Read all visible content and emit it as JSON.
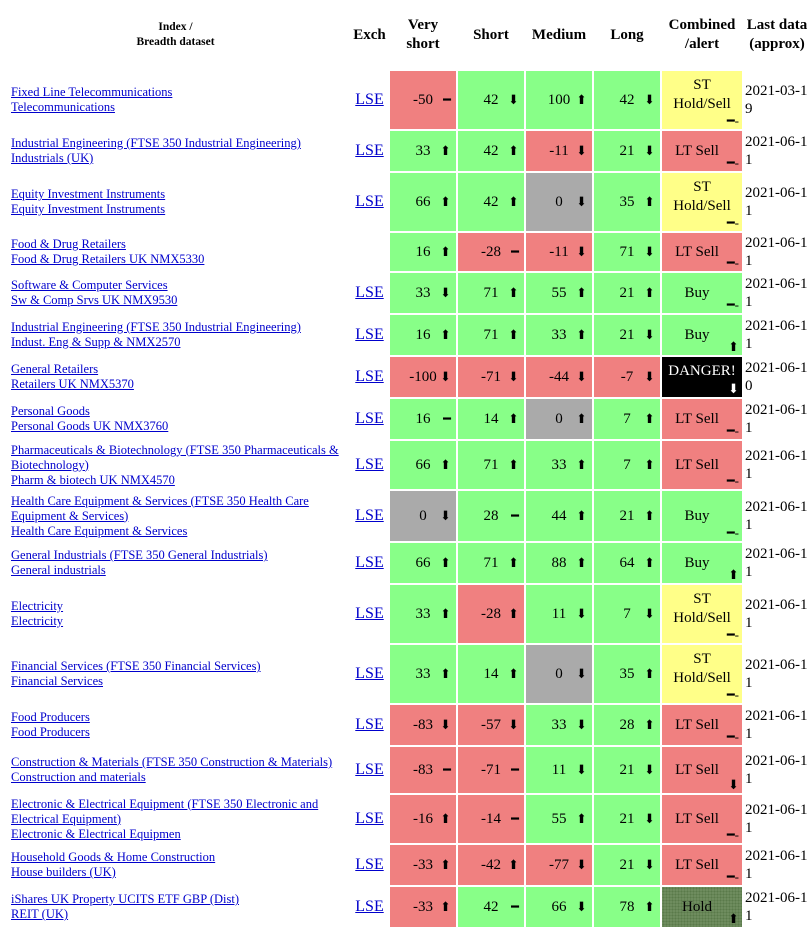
{
  "header": {
    "index": [
      "Index /",
      "Breadth dataset"
    ],
    "exch": "Exch",
    "very_short": "Very short",
    "short": "Short",
    "medium": "Medium",
    "long": "Long",
    "combined": "Combined /alert",
    "date": "Last data (approx)"
  },
  "colors": {
    "positive": "#88ff88",
    "negative": "#f08080",
    "zero": "#aaaaaa"
  },
  "table": {
    "rows": [
      {
        "index": "Fixed Line Telecommunications",
        "breadth": "Telecommunications",
        "exch": "LSE",
        "signals": [
          {
            "value": -50,
            "arrow": "━"
          },
          {
            "value": 42,
            "arrow": "⬇"
          },
          {
            "value": 100,
            "arrow": "⬆"
          },
          {
            "value": 42,
            "arrow": "⬇"
          }
        ],
        "combined": {
          "label": "ST Hold/Sell",
          "arrow": "━-",
          "color": "#ffff88",
          "text_color": "#000000"
        },
        "date": "2021-03-19"
      },
      {
        "index": "Industrial Engineering (FTSE 350 Industrial Engineering)",
        "breadth": "Industrials (UK)",
        "exch": "LSE",
        "signals": [
          {
            "value": 33,
            "arrow": "⬆"
          },
          {
            "value": 42,
            "arrow": "⬆"
          },
          {
            "value": -11,
            "arrow": "⬇"
          },
          {
            "value": 21,
            "arrow": "⬇"
          }
        ],
        "combined": {
          "label": "LT Sell",
          "arrow": "━-",
          "color": "#f08080",
          "text_color": "#000000"
        },
        "date": "2021-06-11"
      },
      {
        "index": "Equity Investment Instruments",
        "breadth": "Equity Investment Instruments",
        "exch": "LSE",
        "signals": [
          {
            "value": 66,
            "arrow": "⬆"
          },
          {
            "value": 42,
            "arrow": "⬆"
          },
          {
            "value": 0,
            "arrow": "⬇"
          },
          {
            "value": 35,
            "arrow": "⬆"
          }
        ],
        "combined": {
          "label": "ST Hold/Sell",
          "arrow": "━-",
          "color": "#ffff88",
          "text_color": "#000000"
        },
        "date": "2021-06-11"
      },
      {
        "index": "Food & Drug Retailers",
        "breadth": "Food & Drug Retailers UK NMX5330",
        "exch": null,
        "signals": [
          {
            "value": 16,
            "arrow": "⬆"
          },
          {
            "value": -28,
            "arrow": "━"
          },
          {
            "value": -11,
            "arrow": "⬇"
          },
          {
            "value": 71,
            "arrow": "⬇"
          }
        ],
        "combined": {
          "label": "LT Sell",
          "arrow": "━-",
          "color": "#f08080",
          "text_color": "#000000"
        },
        "date": "2021-06-11"
      },
      {
        "index": "Software & Computer Services",
        "breadth": "Sw & Comp Srvs UK NMX9530",
        "exch": "LSE",
        "signals": [
          {
            "value": 33,
            "arrow": "⬇"
          },
          {
            "value": 71,
            "arrow": "⬆"
          },
          {
            "value": 55,
            "arrow": "⬆"
          },
          {
            "value": 21,
            "arrow": "⬆"
          }
        ],
        "combined": {
          "label": "Buy",
          "arrow": "━-",
          "color": "#88ff88",
          "text_color": "#000000"
        },
        "date": "2021-06-11"
      },
      {
        "index": "Industrial Engineering (FTSE 350 Industrial Engineering)",
        "breadth": "Indust. Eng & Supp & NMX2570",
        "exch": "LSE",
        "signals": [
          {
            "value": 16,
            "arrow": "⬆"
          },
          {
            "value": 71,
            "arrow": "⬆"
          },
          {
            "value": 33,
            "arrow": "⬆"
          },
          {
            "value": 21,
            "arrow": "⬇"
          }
        ],
        "combined": {
          "label": "Buy",
          "arrow": "⬆",
          "color": "#88ff88",
          "text_color": "#000000"
        },
        "date": "2021-06-11"
      },
      {
        "index": "General Retailers",
        "breadth": "Retailers UK NMX5370",
        "exch": "LSE",
        "signals": [
          {
            "value": -100,
            "arrow": "⬇"
          },
          {
            "value": -71,
            "arrow": "⬇"
          },
          {
            "value": -44,
            "arrow": "⬇"
          },
          {
            "value": -7,
            "arrow": "⬇"
          }
        ],
        "combined": {
          "label": "DANGER!",
          "arrow": "⬇",
          "color": "#000000",
          "text_color": "#ffffff"
        },
        "date": "2021-06-10"
      },
      {
        "index": "Personal Goods",
        "breadth": "Personal Goods UK NMX3760",
        "exch": "LSE",
        "signals": [
          {
            "value": 16,
            "arrow": "━"
          },
          {
            "value": 14,
            "arrow": "⬆"
          },
          {
            "value": 0,
            "arrow": "⬆"
          },
          {
            "value": 7,
            "arrow": "⬆"
          }
        ],
        "combined": {
          "label": "LT Sell",
          "arrow": "━-",
          "color": "#f08080",
          "text_color": "#000000"
        },
        "date": "2021-06-11"
      },
      {
        "index": "Pharmaceuticals & Biotechnology (FTSE 350 Pharmaceuticals & Biotechnology)",
        "breadth": "Pharm & biotech UK NMX4570",
        "exch": "LSE",
        "signals": [
          {
            "value": 66,
            "arrow": "⬆"
          },
          {
            "value": 71,
            "arrow": "⬆"
          },
          {
            "value": 33,
            "arrow": "⬆"
          },
          {
            "value": 7,
            "arrow": "⬆"
          }
        ],
        "combined": {
          "label": "LT Sell",
          "arrow": "━-",
          "color": "#f08080",
          "text_color": "#000000"
        },
        "date": "2021-06-11"
      },
      {
        "index": "Health Care Equipment & Services (FTSE 350 Health Care Equipment & Services)",
        "breadth": "Health Care Equipment & Services",
        "exch": "LSE",
        "signals": [
          {
            "value": 0,
            "arrow": "⬇"
          },
          {
            "value": 28,
            "arrow": "━"
          },
          {
            "value": 44,
            "arrow": "⬆"
          },
          {
            "value": 21,
            "arrow": "⬆"
          }
        ],
        "combined": {
          "label": "Buy",
          "arrow": "━-",
          "color": "#88ff88",
          "text_color": "#000000"
        },
        "date": "2021-06-11"
      },
      {
        "index": "General Industrials (FTSE 350 General Industrials)",
        "breadth": "General industrials",
        "exch": "LSE",
        "signals": [
          {
            "value": 66,
            "arrow": "⬆"
          },
          {
            "value": 71,
            "arrow": "⬆"
          },
          {
            "value": 88,
            "arrow": "⬆"
          },
          {
            "value": 64,
            "arrow": "⬆"
          }
        ],
        "combined": {
          "label": "Buy",
          "arrow": "⬆",
          "color": "#88ff88",
          "text_color": "#000000"
        },
        "date": "2021-06-11"
      },
      {
        "index": "Electricity",
        "breadth": "Electricity",
        "exch": "LSE",
        "signals": [
          {
            "value": 33,
            "arrow": "⬆"
          },
          {
            "value": -28,
            "arrow": "⬆"
          },
          {
            "value": 11,
            "arrow": "⬇"
          },
          {
            "value": 7,
            "arrow": "⬇"
          }
        ],
        "combined": {
          "label": "ST Hold/Sell",
          "arrow": "━-",
          "color": "#ffff88",
          "text_color": "#000000"
        },
        "date": "2021-06-11"
      },
      {
        "index": "Financial Services (FTSE 350 Financial Services)",
        "breadth": "Financial Services",
        "exch": "LSE",
        "signals": [
          {
            "value": 33,
            "arrow": "⬆"
          },
          {
            "value": 14,
            "arrow": "⬆"
          },
          {
            "value": 0,
            "arrow": "⬇"
          },
          {
            "value": 35,
            "arrow": "⬆"
          }
        ],
        "combined": {
          "label": "ST Hold/Sell",
          "arrow": "━-",
          "color": "#ffff88",
          "text_color": "#000000"
        },
        "date": "2021-06-11"
      },
      {
        "index": "Food Producers",
        "breadth": "Food Producers",
        "exch": "LSE",
        "signals": [
          {
            "value": -83,
            "arrow": "⬇"
          },
          {
            "value": -57,
            "arrow": "⬇"
          },
          {
            "value": 33,
            "arrow": "⬇"
          },
          {
            "value": 28,
            "arrow": "⬆"
          }
        ],
        "combined": {
          "label": "LT Sell",
          "arrow": "━-",
          "color": "#f08080",
          "text_color": "#000000"
        },
        "date": "2021-06-11"
      },
      {
        "index": "Construction & Materials (FTSE 350 Construction & Materials)",
        "breadth": "Construction and materials",
        "exch": "LSE",
        "signals": [
          {
            "value": -83,
            "arrow": "━"
          },
          {
            "value": -71,
            "arrow": "━"
          },
          {
            "value": 11,
            "arrow": "⬇"
          },
          {
            "value": 21,
            "arrow": "⬇"
          }
        ],
        "combined": {
          "label": "LT Sell",
          "arrow": "⬇",
          "color": "#f08080",
          "text_color": "#000000"
        },
        "date": "2021-06-11"
      },
      {
        "index": "Electronic & Electrical Equipment (FTSE 350 Electronic and Electrical Equipment)",
        "breadth": "Electronic & Electrical Equipmen",
        "exch": "LSE",
        "signals": [
          {
            "value": -16,
            "arrow": "⬆"
          },
          {
            "value": -14,
            "arrow": "━"
          },
          {
            "value": 55,
            "arrow": "⬆"
          },
          {
            "value": 21,
            "arrow": "⬇"
          }
        ],
        "combined": {
          "label": "LT Sell",
          "arrow": "━-",
          "color": "#f08080",
          "text_color": "#000000"
        },
        "date": "2021-06-11"
      },
      {
        "index": "Household Goods & Home Construction",
        "breadth": "House builders (UK)",
        "exch": "LSE",
        "signals": [
          {
            "value": -33,
            "arrow": "⬆"
          },
          {
            "value": -42,
            "arrow": "⬆"
          },
          {
            "value": -77,
            "arrow": "⬇"
          },
          {
            "value": 21,
            "arrow": "⬇"
          }
        ],
        "combined": {
          "label": "LT Sell",
          "arrow": "━-",
          "color": "#f08080",
          "text_color": "#000000"
        },
        "date": "2021-06-11"
      },
      {
        "index": "iShares UK Property UCITS ETF GBP (Dist)",
        "breadth": "REIT (UK)",
        "exch": "LSE",
        "signals": [
          {
            "value": -33,
            "arrow": "⬆"
          },
          {
            "value": 42,
            "arrow": "━"
          },
          {
            "value": 66,
            "arrow": "⬇"
          },
          {
            "value": 78,
            "arrow": "⬆"
          }
        ],
        "combined": {
          "label": "Hold",
          "arrow": "⬆",
          "color": "#6e8c5e",
          "text_color": "#000000"
        },
        "date": "2021-06-11"
      }
    ]
  }
}
